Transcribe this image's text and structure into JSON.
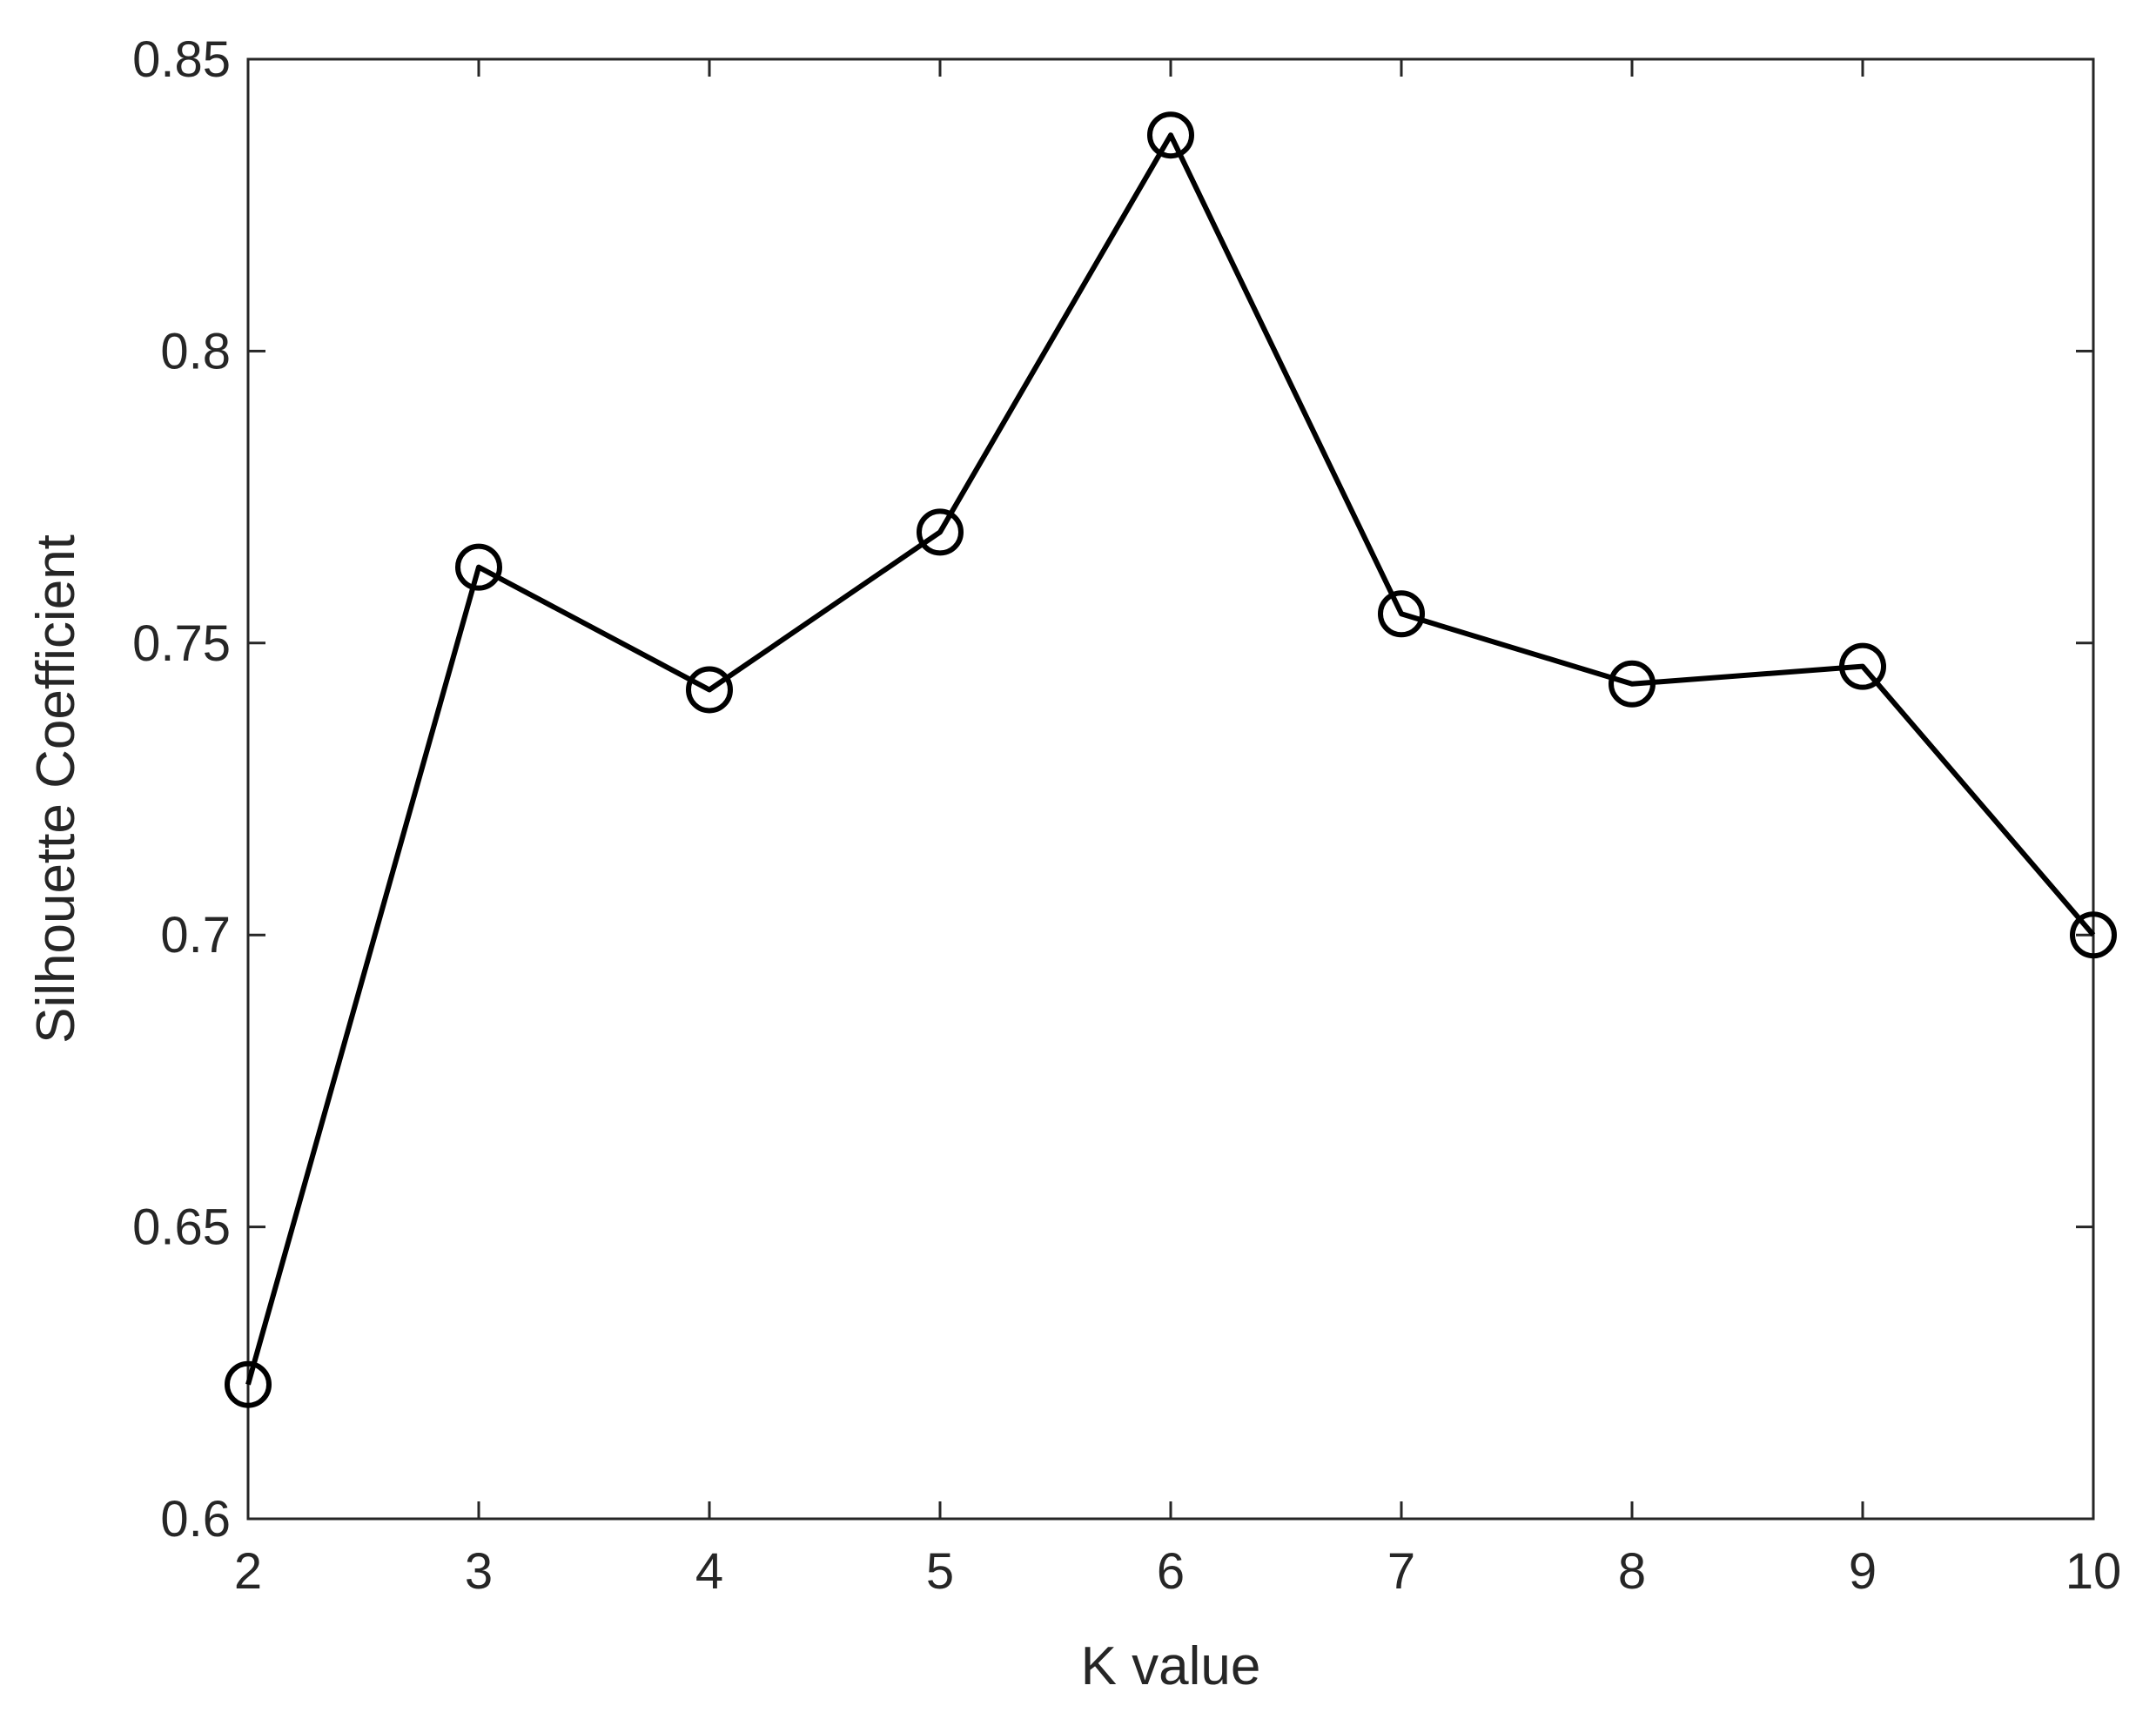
{
  "chart_data": {
    "type": "line",
    "xlabel": "K value",
    "ylabel": "Silhouette Coefficient",
    "x": [
      2,
      3,
      4,
      5,
      6,
      7,
      8,
      9,
      10
    ],
    "series": [
      {
        "values": [
          0.623,
          0.763,
          0.742,
          0.769,
          0.837,
          0.755,
          0.743,
          0.746,
          0.7
        ],
        "color": "#000000",
        "marker": "open-circle"
      }
    ],
    "xlim": [
      2,
      10
    ],
    "ylim": [
      0.6,
      0.85
    ],
    "xticks": [
      "2",
      "3",
      "4",
      "5",
      "6",
      "7",
      "8",
      "9",
      "10"
    ],
    "yticks": [
      "0.6",
      "0.65",
      "0.7",
      "0.75",
      "0.8",
      "0.85"
    ],
    "grid": false,
    "legend": "none"
  }
}
